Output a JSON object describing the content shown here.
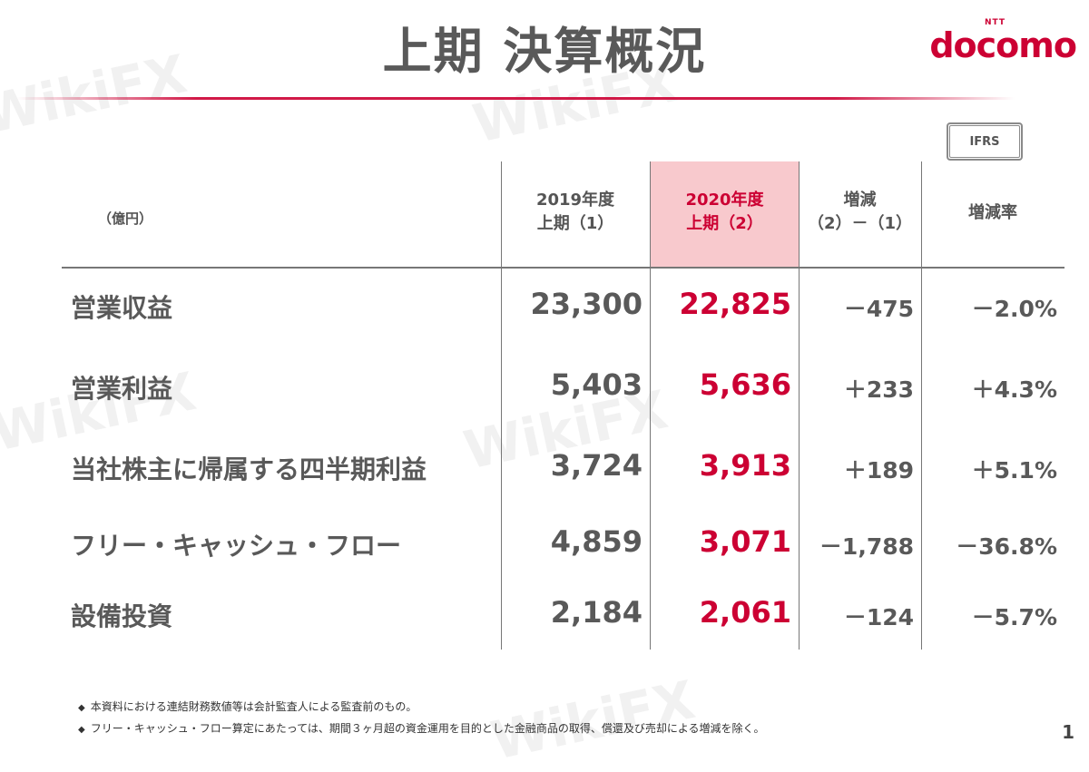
{
  "title": "上期 決算概況",
  "logo": {
    "ntt": "NTT",
    "brand": "docomo"
  },
  "badge": "IFRS",
  "table": {
    "unit": "（億円）",
    "headers": [
      {
        "line1": "2019年度",
        "line2": "上期（1）"
      },
      {
        "line1": "2020年度",
        "line2": "上期（2）"
      },
      {
        "line1": "増減",
        "line2": "（2）－（1）"
      },
      {
        "line1": "増減率",
        "line2": ""
      }
    ],
    "rows": [
      {
        "label": "営業収益",
        "fy2019": "23,300",
        "fy2020": "22,825",
        "diff": "－475",
        "rate": "－2.0%"
      },
      {
        "label": "営業利益",
        "fy2019": "5,403",
        "fy2020": "5,636",
        "diff": "＋233",
        "rate": "＋4.3%"
      },
      {
        "label": "当社株主に帰属する四半期利益",
        "fy2019": "3,724",
        "fy2020": "3,913",
        "diff": "＋189",
        "rate": "＋5.1%"
      },
      {
        "label": "フリー・キャッシュ・フロー",
        "fy2019": "4,859",
        "fy2020": "3,071",
        "diff": "－1,788",
        "rate": "－36.8%"
      },
      {
        "label": "設備投資",
        "fy2019": "2,184",
        "fy2020": "2,061",
        "diff": "－124",
        "rate": "－5.7%"
      }
    ]
  },
  "notes": [
    "本資料における連結財務数値等は会計監査人による監査前のもの。",
    "フリー・キャッシュ・フロー算定にあたっては、期間３ヶ月超の資金運用を目的とした金融商品の取得、償還及び売却による増減を除く。"
  ],
  "bullet": "◆",
  "page_number": "1",
  "watermark": "WikiFX",
  "colors": {
    "accent": "#cc0033",
    "highlight": "#f8c9cd",
    "text": "#595959"
  }
}
